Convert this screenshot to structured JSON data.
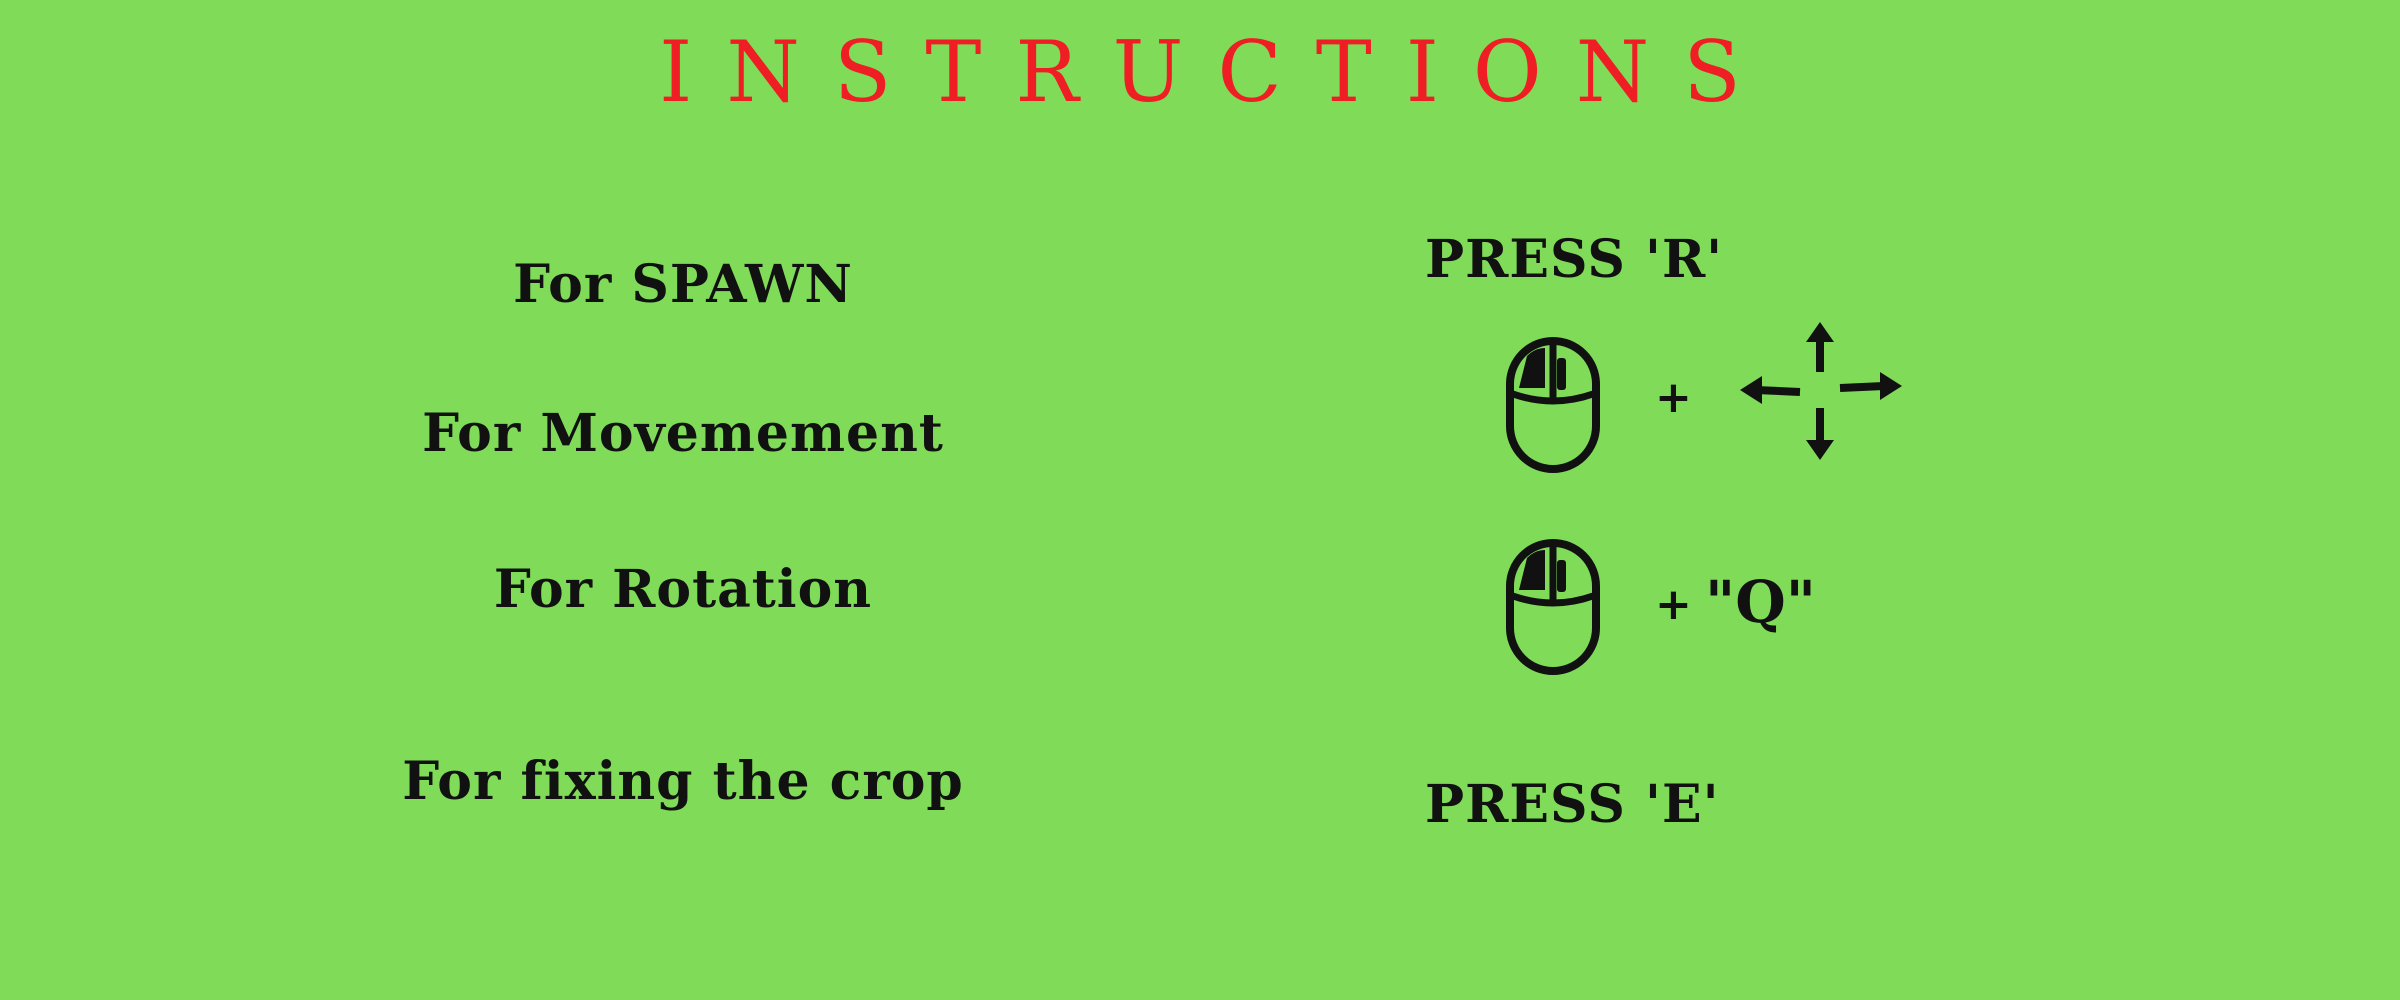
{
  "title": "INSTRUCTIONS",
  "rows": [
    {
      "label": "For SPAWN",
      "control": "PRESS 'R'"
    },
    {
      "label": "For Movemement",
      "control_icons": [
        "mouse-left-click-icon",
        "four-direction-arrows-icon"
      ],
      "plus": "+"
    },
    {
      "label": "For Rotation",
      "control_icons": [
        "mouse-left-click-icon"
      ],
      "plus": "+",
      "key": "\"Q\""
    },
    {
      "label": "For fixing the crop",
      "control": "PRESS 'E'"
    }
  ],
  "colors": {
    "background": "#80db59",
    "title": "#ef1d24",
    "text": "#111111"
  }
}
